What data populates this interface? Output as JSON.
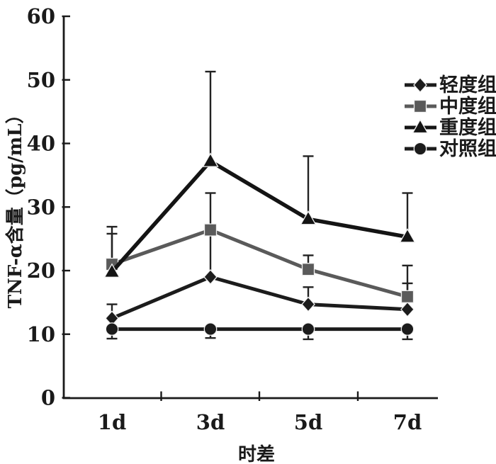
{
  "chart_data": {
    "type": "line",
    "title": "",
    "xlabel": "时差",
    "ylabel": "TNF-α含量（pg/mL）",
    "categories": [
      "1d",
      "3d",
      "5d",
      "7d"
    ],
    "ylim": [
      0,
      60
    ],
    "yticks": [
      0,
      10,
      20,
      30,
      40,
      50,
      60
    ],
    "grid": false,
    "legend_position": "right",
    "axis_color": "#1a1a1a",
    "series": [
      {
        "name": "轻度组",
        "marker": "diamond",
        "color": "#1c1c1c",
        "values": [
          12.5,
          19.0,
          14.7,
          13.9
        ]
      },
      {
        "name": "中度组",
        "marker": "square",
        "color": "#5a5a5a",
        "values": [
          21.0,
          26.4,
          20.2,
          15.9
        ]
      },
      {
        "name": "重度组",
        "marker": "triangle",
        "color": "#141414",
        "values": [
          19.8,
          37.2,
          28.1,
          25.3
        ]
      },
      {
        "name": "对照组",
        "marker": "circle",
        "color": "#1c1c1c",
        "values": [
          10.8,
          10.8,
          10.8,
          10.8
        ]
      }
    ],
    "error_bars": [
      {
        "cat": 0,
        "from": 12.5,
        "to": 14.7,
        "cap_top": true,
        "cap_bottom": false
      },
      {
        "cat": 0,
        "from": 21.0,
        "to": 26.9,
        "cap_top": true,
        "cap_bottom": false
      },
      {
        "cat": 0,
        "from": 19.8,
        "to": 25.8,
        "cap_top": true,
        "cap_bottom": false
      },
      {
        "cat": 0,
        "from": 10.8,
        "to": 9.3,
        "cap_top": false,
        "cap_bottom": true
      },
      {
        "cat": 1,
        "from": 19.0,
        "to": 32.2,
        "cap_top": true,
        "cap_bottom": false
      },
      {
        "cat": 1,
        "from": 37.2,
        "to": 51.3,
        "cap_top": true,
        "cap_bottom": false
      },
      {
        "cat": 1,
        "from": 10.8,
        "to": 9.4,
        "cap_top": false,
        "cap_bottom": true
      },
      {
        "cat": 2,
        "from": 14.7,
        "to": 17.4,
        "cap_top": true,
        "cap_bottom": false
      },
      {
        "cat": 2,
        "from": 20.2,
        "to": 22.4,
        "cap_top": true,
        "cap_bottom": false
      },
      {
        "cat": 2,
        "from": 28.1,
        "to": 38.0,
        "cap_top": true,
        "cap_bottom": false
      },
      {
        "cat": 2,
        "from": 10.8,
        "to": 9.2,
        "cap_top": false,
        "cap_bottom": true
      },
      {
        "cat": 3,
        "from": 13.9,
        "to": 18.0,
        "cap_top": true,
        "cap_bottom": false
      },
      {
        "cat": 3,
        "from": 15.9,
        "to": 20.8,
        "cap_top": true,
        "cap_bottom": false
      },
      {
        "cat": 3,
        "from": 25.3,
        "to": 32.2,
        "cap_top": true,
        "cap_bottom": false
      },
      {
        "cat": 3,
        "from": 10.8,
        "to": 9.2,
        "cap_top": false,
        "cap_bottom": true
      }
    ]
  }
}
